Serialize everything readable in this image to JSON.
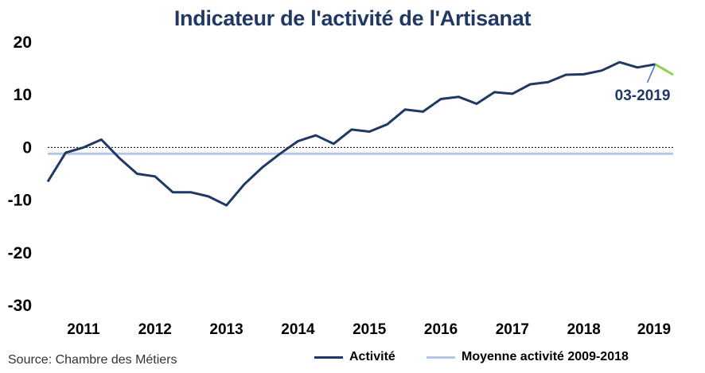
{
  "chart_data": {
    "type": "line",
    "title": "Indicateur de l'activité de l'Artisanat",
    "ylim": [
      -30,
      20
    ],
    "yticks": [
      20,
      10,
      0,
      -10,
      -20,
      -30
    ],
    "xlim": [
      2010.5,
      2019.25
    ],
    "xticks": [
      2011,
      2012,
      2013,
      2014,
      2015,
      2016,
      2017,
      2018,
      2019
    ],
    "grid": false,
    "legend_position": "bottom-right",
    "series": [
      {
        "name": "Activité",
        "color": "#1f3864",
        "points": [
          [
            2010.5,
            -6.5
          ],
          [
            2010.75,
            -1.0
          ],
          [
            2011.0,
            0.0
          ],
          [
            2011.25,
            1.5
          ],
          [
            2011.5,
            -2.0
          ],
          [
            2011.75,
            -5.0
          ],
          [
            2012.0,
            -5.5
          ],
          [
            2012.25,
            -8.5
          ],
          [
            2012.5,
            -8.5
          ],
          [
            2012.75,
            -9.3
          ],
          [
            2013.0,
            -11.0
          ],
          [
            2013.25,
            -7.0
          ],
          [
            2013.5,
            -3.8
          ],
          [
            2013.75,
            -1.2
          ],
          [
            2014.0,
            1.2
          ],
          [
            2014.25,
            2.3
          ],
          [
            2014.5,
            0.7
          ],
          [
            2014.75,
            3.4
          ],
          [
            2015.0,
            3.0
          ],
          [
            2015.25,
            4.4
          ],
          [
            2015.5,
            7.2
          ],
          [
            2015.75,
            6.8
          ],
          [
            2016.0,
            9.2
          ],
          [
            2016.25,
            9.6
          ],
          [
            2016.5,
            8.3
          ],
          [
            2016.75,
            10.5
          ],
          [
            2017.0,
            10.2
          ],
          [
            2017.25,
            12.0
          ],
          [
            2017.5,
            12.4
          ],
          [
            2017.75,
            13.8
          ],
          [
            2018.0,
            13.9
          ],
          [
            2018.25,
            14.6
          ],
          [
            2018.5,
            16.2
          ],
          [
            2018.75,
            15.2
          ],
          [
            2019.0,
            15.8
          ]
        ]
      },
      {
        "name": "Moyenne activité 2009-2018",
        "color": "#b4c7e7",
        "points": [
          [
            2010.5,
            -1.2
          ],
          [
            2019.25,
            -1.2
          ]
        ]
      }
    ],
    "forecast_segment": {
      "color": "#92d050",
      "points": [
        [
          2019.0,
          15.8
        ],
        [
          2019.25,
          13.8
        ]
      ]
    },
    "annotation": {
      "text": "03-2019",
      "x": 2019.0,
      "y": 15.8
    },
    "source": "Source: Chambre des Métiers"
  }
}
